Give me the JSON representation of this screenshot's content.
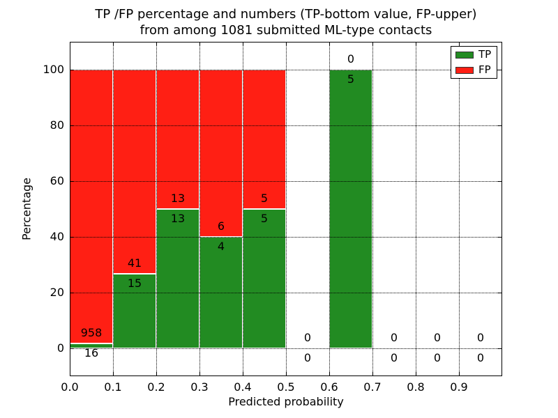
{
  "chart_data": {
    "type": "bar",
    "stacked": true,
    "title_line1": "TP /FP percentage and numbers (TP-bottom value, FP-upper)",
    "title_line2": "from among 1081 submitted ML-type contacts",
    "xlabel": "Predicted probability",
    "ylabel": "Percentage",
    "xlim": [
      0,
      1.0
    ],
    "ylim": [
      -10,
      110
    ],
    "grid": "dotted",
    "legend_position": "upper right",
    "x_ticks": [
      0,
      0.1,
      0.2,
      0.3,
      0.4,
      0.5,
      0.6,
      0.7,
      0.8,
      0.9
    ],
    "x_tick_labels": [
      "0.0",
      "0.1",
      "0.2",
      "0.3",
      "0.4",
      "0.5",
      "0.6",
      "0.7",
      "0.8",
      "0.9"
    ],
    "y_ticks": [
      0,
      20,
      40,
      60,
      80,
      100
    ],
    "y_tick_labels": [
      "0",
      "20",
      "40",
      "60",
      "80",
      "100"
    ],
    "colors": {
      "tp": "#228b22",
      "fp": "#ff1f14",
      "edge": "#ffffff",
      "grid": "#000000"
    },
    "legend": [
      {
        "label": "TP",
        "key": "tp"
      },
      {
        "label": "FP",
        "key": "fp"
      }
    ],
    "bins": [
      {
        "x0": 0.0,
        "x1": 0.1,
        "tp": 16,
        "fp": 958,
        "tp_pct": 1.64,
        "fp_pct": 98.36
      },
      {
        "x0": 0.1,
        "x1": 0.2,
        "tp": 15,
        "fp": 41,
        "tp_pct": 26.79,
        "fp_pct": 73.21
      },
      {
        "x0": 0.2,
        "x1": 0.3,
        "tp": 13,
        "fp": 13,
        "tp_pct": 50,
        "fp_pct": 50
      },
      {
        "x0": 0.3,
        "x1": 0.4,
        "tp": 4,
        "fp": 6,
        "tp_pct": 40,
        "fp_pct": 60
      },
      {
        "x0": 0.4,
        "x1": 0.5,
        "tp": 5,
        "fp": 5,
        "tp_pct": 50,
        "fp_pct": 50
      },
      {
        "x0": 0.5,
        "x1": 0.6,
        "tp": 0,
        "fp": 0,
        "tp_pct": 0,
        "fp_pct": 0
      },
      {
        "x0": 0.6,
        "x1": 0.7,
        "tp": 5,
        "fp": 0,
        "tp_pct": 100,
        "fp_pct": 0
      },
      {
        "x0": 0.7,
        "x1": 0.8,
        "tp": 0,
        "fp": 0,
        "tp_pct": 0,
        "fp_pct": 0
      },
      {
        "x0": 0.8,
        "x1": 0.9,
        "tp": 0,
        "fp": 0,
        "tp_pct": 0,
        "fp_pct": 0
      },
      {
        "x0": 0.9,
        "x1": 1.0,
        "tp": 0,
        "fp": 0,
        "tp_pct": 0,
        "fp_pct": 0
      }
    ]
  }
}
